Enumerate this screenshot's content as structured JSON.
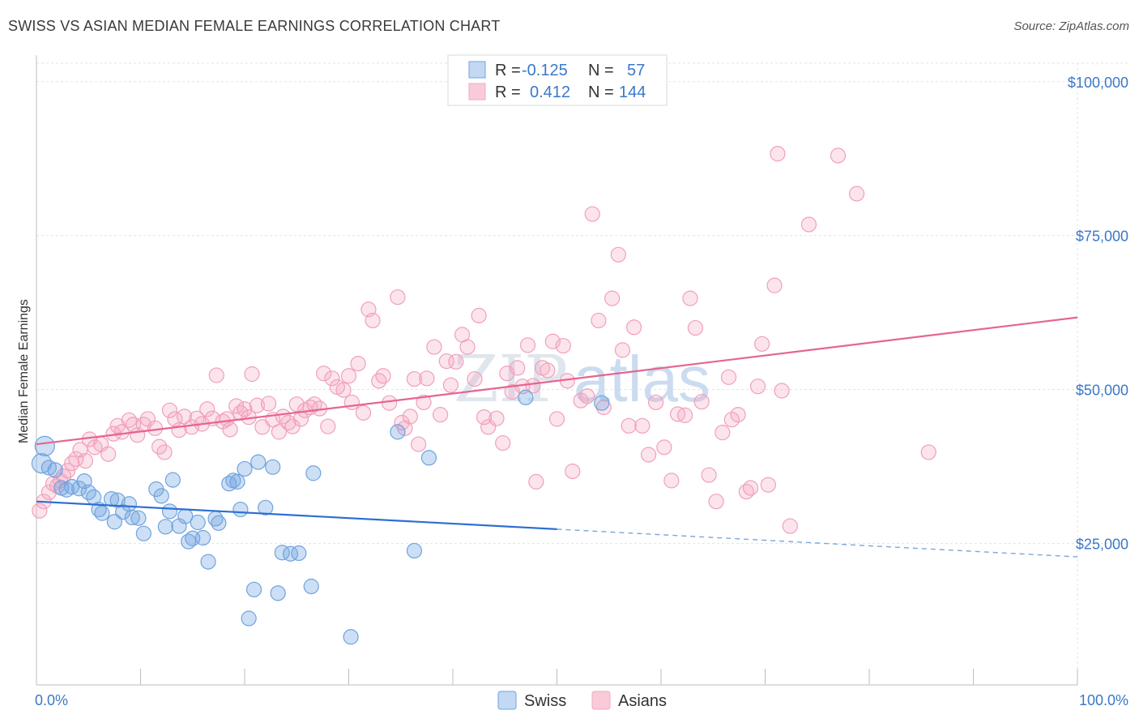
{
  "header": {
    "title": "SWISS VS ASIAN MEDIAN FEMALE EARNINGS CORRELATION CHART",
    "source": "Source: ZipAtlas.com"
  },
  "colors": {
    "swiss": "#6fa3e0",
    "swiss_line": "#2c6fd1",
    "asians": "#f4a7bf",
    "asians_line": "#e56590",
    "tick_text": "#3b78c7"
  },
  "legend_top": {
    "rows": [
      {
        "r_label": "R = ",
        "r_value": "-0.125",
        "n_label": "N = ",
        "n_value": "57"
      },
      {
        "r_label": "R = ",
        "r_value": "0.412",
        "n_label": "N = ",
        "n_value": "144"
      }
    ]
  },
  "legend_bottom": {
    "items": [
      "Swiss",
      "Asians"
    ]
  },
  "watermark": {
    "zip": "ZIP",
    "atlas": "atlas"
  },
  "chart_data": {
    "type": "scatter",
    "title": "SWISS VS ASIAN MEDIAN FEMALE EARNINGS CORRELATION CHART",
    "ylabel": "Median Female Earnings",
    "xlabel": "",
    "xlim": [
      0,
      100
    ],
    "ylim": [
      2000,
      103000
    ],
    "x_tick_labels": [
      "0.0%",
      "100.0%"
    ],
    "y_ticks": [
      25000,
      50000,
      75000,
      100000
    ],
    "y_tick_labels": [
      "$25,000",
      "$50,000",
      "$75,000",
      "$100,000"
    ],
    "grid": true,
    "legend_position": "top-center",
    "series": [
      {
        "name": "Swiss",
        "r": -0.125,
        "n": 57,
        "trend": {
          "x0": 0,
          "y0": 31800,
          "x1": 50,
          "y1": 27300,
          "dashed_to_x": 100,
          "dashed_to_y": 22800
        },
        "points": [
          [
            0.5,
            38000
          ],
          [
            0.8,
            40800
          ],
          [
            1.2,
            37300
          ],
          [
            1.8,
            36900
          ],
          [
            2.4,
            34000
          ],
          [
            2.9,
            33700
          ],
          [
            3.4,
            34200
          ],
          [
            4.1,
            33900
          ],
          [
            4.6,
            35100
          ],
          [
            5.0,
            33300
          ],
          [
            5.5,
            32500
          ],
          [
            6.0,
            30500
          ],
          [
            6.3,
            29900
          ],
          [
            7.2,
            32200
          ],
          [
            7.5,
            28500
          ],
          [
            7.8,
            32000
          ],
          [
            8.3,
            30100
          ],
          [
            8.9,
            31400
          ],
          [
            9.2,
            29200
          ],
          [
            9.8,
            29100
          ],
          [
            10.3,
            26600
          ],
          [
            11.5,
            33800
          ],
          [
            12.0,
            32700
          ],
          [
            12.4,
            27700
          ],
          [
            12.8,
            30200
          ],
          [
            13.1,
            35300
          ],
          [
            13.7,
            27800
          ],
          [
            14.3,
            29400
          ],
          [
            14.6,
            25300
          ],
          [
            15.0,
            25800
          ],
          [
            15.5,
            28400
          ],
          [
            16.0,
            25900
          ],
          [
            16.5,
            22000
          ],
          [
            17.2,
            29000
          ],
          [
            17.5,
            28300
          ],
          [
            18.5,
            34700
          ],
          [
            18.9,
            35200
          ],
          [
            19.3,
            35000
          ],
          [
            19.6,
            30500
          ],
          [
            20.0,
            37100
          ],
          [
            20.4,
            12800
          ],
          [
            20.9,
            17500
          ],
          [
            21.3,
            38200
          ],
          [
            22.0,
            30800
          ],
          [
            22.7,
            37400
          ],
          [
            23.2,
            16900
          ],
          [
            23.6,
            23500
          ],
          [
            24.4,
            23300
          ],
          [
            25.2,
            23400
          ],
          [
            26.4,
            18000
          ],
          [
            26.6,
            36400
          ],
          [
            30.2,
            9800
          ],
          [
            34.7,
            43100
          ],
          [
            36.3,
            23800
          ],
          [
            37.7,
            38900
          ],
          [
            47.0,
            48700
          ],
          [
            54.3,
            47800
          ]
        ]
      },
      {
        "name": "Asians",
        "r": 0.412,
        "n": 144,
        "trend": {
          "x0": 0,
          "y0": 41100,
          "x1": 100,
          "y1": 61700
        },
        "points": [
          [
            0.3,
            30300
          ],
          [
            0.7,
            31800
          ],
          [
            1.2,
            33300
          ],
          [
            1.6,
            34700
          ],
          [
            2.0,
            34300
          ],
          [
            2.3,
            35200
          ],
          [
            2.6,
            35900
          ],
          [
            3.0,
            36800
          ],
          [
            3.4,
            38000
          ],
          [
            3.8,
            38700
          ],
          [
            4.2,
            40200
          ],
          [
            4.7,
            38400
          ],
          [
            5.1,
            41900
          ],
          [
            5.6,
            40600
          ],
          [
            6.2,
            41100
          ],
          [
            6.9,
            39500
          ],
          [
            7.4,
            42800
          ],
          [
            7.8,
            44100
          ],
          [
            8.2,
            43100
          ],
          [
            8.9,
            45000
          ],
          [
            9.3,
            44300
          ],
          [
            9.7,
            42600
          ],
          [
            10.3,
            44300
          ],
          [
            10.7,
            45200
          ],
          [
            11.4,
            43700
          ],
          [
            11.8,
            40700
          ],
          [
            12.3,
            39800
          ],
          [
            12.8,
            46600
          ],
          [
            13.3,
            45200
          ],
          [
            13.7,
            43400
          ],
          [
            14.2,
            45600
          ],
          [
            14.9,
            43900
          ],
          [
            15.4,
            45300
          ],
          [
            15.9,
            44400
          ],
          [
            16.4,
            46800
          ],
          [
            16.9,
            45300
          ],
          [
            17.3,
            52300
          ],
          [
            17.9,
            44800
          ],
          [
            18.3,
            45200
          ],
          [
            18.6,
            43500
          ],
          [
            19.2,
            47300
          ],
          [
            19.6,
            46200
          ],
          [
            20.0,
            46800
          ],
          [
            20.4,
            45500
          ],
          [
            20.7,
            52500
          ],
          [
            21.2,
            47400
          ],
          [
            21.7,
            43900
          ],
          [
            22.3,
            47700
          ],
          [
            22.7,
            45100
          ],
          [
            23.3,
            43100
          ],
          [
            23.7,
            45600
          ],
          [
            24.2,
            44600
          ],
          [
            24.6,
            44000
          ],
          [
            25.0,
            47600
          ],
          [
            25.4,
            45200
          ],
          [
            25.8,
            46600
          ],
          [
            26.3,
            47100
          ],
          [
            26.7,
            47600
          ],
          [
            27.2,
            46900
          ],
          [
            27.6,
            52600
          ],
          [
            28.0,
            44000
          ],
          [
            28.4,
            51800
          ],
          [
            28.9,
            50400
          ],
          [
            29.5,
            49900
          ],
          [
            30.0,
            52200
          ],
          [
            30.3,
            47900
          ],
          [
            30.9,
            54200
          ],
          [
            31.4,
            46200
          ],
          [
            31.9,
            63000
          ],
          [
            32.3,
            61200
          ],
          [
            32.9,
            51400
          ],
          [
            33.3,
            52200
          ],
          [
            33.9,
            47800
          ],
          [
            34.7,
            65000
          ],
          [
            35.1,
            44600
          ],
          [
            35.4,
            43700
          ],
          [
            35.9,
            45600
          ],
          [
            36.3,
            51700
          ],
          [
            36.7,
            41100
          ],
          [
            37.2,
            47900
          ],
          [
            37.5,
            51800
          ],
          [
            38.2,
            56900
          ],
          [
            38.8,
            45900
          ],
          [
            39.4,
            54600
          ],
          [
            39.8,
            50700
          ],
          [
            40.3,
            54500
          ],
          [
            40.9,
            58900
          ],
          [
            41.4,
            56900
          ],
          [
            42.1,
            51700
          ],
          [
            42.5,
            62000
          ],
          [
            43.0,
            45500
          ],
          [
            43.4,
            43900
          ],
          [
            44.2,
            45300
          ],
          [
            44.8,
            41300
          ],
          [
            45.2,
            52600
          ],
          [
            45.7,
            49600
          ],
          [
            46.2,
            53500
          ],
          [
            46.7,
            50500
          ],
          [
            47.2,
            57200
          ],
          [
            47.7,
            50600
          ],
          [
            48.0,
            35000
          ],
          [
            48.6,
            53500
          ],
          [
            49.1,
            53100
          ],
          [
            49.6,
            57800
          ],
          [
            50.0,
            45200
          ],
          [
            50.6,
            57100
          ],
          [
            51.0,
            51400
          ],
          [
            51.5,
            36700
          ],
          [
            52.3,
            48200
          ],
          [
            52.9,
            48900
          ],
          [
            53.4,
            78500
          ],
          [
            54.0,
            61200
          ],
          [
            54.5,
            47100
          ],
          [
            55.3,
            64800
          ],
          [
            55.9,
            71900
          ],
          [
            56.3,
            56400
          ],
          [
            56.9,
            44100
          ],
          [
            57.4,
            60100
          ],
          [
            58.2,
            44100
          ],
          [
            58.8,
            39400
          ],
          [
            59.5,
            47900
          ],
          [
            60.3,
            40600
          ],
          [
            61.0,
            35200
          ],
          [
            61.6,
            46000
          ],
          [
            62.3,
            45800
          ],
          [
            62.8,
            64800
          ],
          [
            63.3,
            60000
          ],
          [
            63.9,
            48000
          ],
          [
            64.6,
            36100
          ],
          [
            65.3,
            31800
          ],
          [
            65.9,
            43000
          ],
          [
            66.5,
            52000
          ],
          [
            66.8,
            45100
          ],
          [
            67.4,
            45900
          ],
          [
            68.2,
            33400
          ],
          [
            68.6,
            34000
          ],
          [
            69.3,
            50500
          ],
          [
            69.7,
            57400
          ],
          [
            70.3,
            34500
          ],
          [
            70.9,
            66900
          ],
          [
            71.2,
            88300
          ],
          [
            71.6,
            49800
          ],
          [
            72.4,
            27800
          ],
          [
            74.2,
            76800
          ],
          [
            77.0,
            88000
          ],
          [
            78.8,
            81800
          ],
          [
            85.7,
            39800
          ]
        ]
      }
    ]
  }
}
